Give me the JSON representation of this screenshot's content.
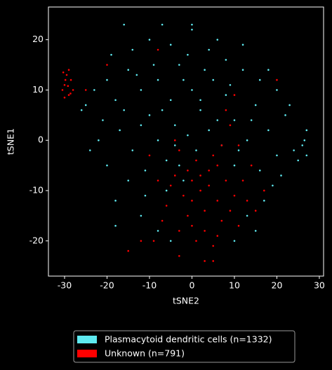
{
  "chart_data": {
    "type": "scatter",
    "x_label": "tSNE2",
    "y_label": "tSNE1",
    "xlim": [
      -33.8,
      31
    ],
    "ylim": [
      -27,
      26.5
    ],
    "xticks": [
      -30,
      -20,
      -10,
      0,
      10,
      20,
      30
    ],
    "yticks": [
      -20,
      -10,
      0,
      10,
      20
    ],
    "legend": "below",
    "series": [
      {
        "name": "Plasmacytoid dendritic cells (n=1332)",
        "color": "#5ee9f0",
        "x": [
          -20,
          -18,
          -15,
          -12,
          -10,
          -8,
          -5,
          -3,
          0,
          2,
          5,
          8,
          10,
          12,
          15,
          18,
          20,
          22,
          -22,
          -20,
          -17,
          -14,
          -11,
          -8,
          -6,
          -4,
          -1,
          1,
          4,
          7,
          10,
          13,
          16,
          19,
          -25,
          -23,
          -19,
          -14,
          -10,
          -5,
          0,
          4,
          8,
          12,
          16,
          20,
          24,
          26,
          27,
          26.5,
          25,
          27,
          -18,
          -15,
          -12,
          -8,
          -6,
          -3,
          -12,
          -7,
          -2,
          3,
          6,
          9,
          11,
          14,
          17,
          13,
          -16,
          -21,
          -9,
          -1,
          6,
          -4,
          2,
          -13,
          18,
          21,
          -26,
          -24,
          -11,
          -5,
          15,
          10,
          -16,
          -7,
          0,
          -18,
          23,
          -2
        ],
        "y": [
          12,
          8,
          14,
          10,
          5,
          12,
          8,
          15,
          10,
          6,
          12,
          9,
          4,
          14,
          7,
          2,
          -3,
          5,
          0,
          -5,
          2,
          -2,
          -6,
          0,
          -4,
          3,
          1,
          -2,
          2,
          -1,
          -5,
          0,
          -6,
          -9,
          7,
          10,
          17,
          18,
          20,
          19,
          22,
          18,
          16,
          19,
          12,
          10,
          -2,
          -1,
          -3,
          0,
          -4,
          2,
          -12,
          -8,
          -15,
          -18,
          -10,
          -5,
          3,
          6,
          12,
          14,
          4,
          11,
          -2,
          4,
          -12,
          -15,
          6,
          4,
          15,
          17,
          20,
          -1,
          8,
          13,
          14,
          -7,
          6,
          -2,
          -11,
          -20,
          -18,
          -20,
          23,
          23,
          23,
          -17,
          7,
          -8
        ]
      },
      {
        "name": "Unknown (n=791)",
        "color": "#ff0000",
        "x": [
          -30,
          -29.5,
          -29,
          -30.5,
          -28.5,
          -29,
          -30,
          -28,
          -29.8,
          -28.6,
          -30.3,
          -29.2,
          0,
          2,
          4,
          6,
          3,
          -2,
          -4,
          -6,
          8,
          10,
          1,
          5,
          -1,
          7,
          3,
          -3,
          9,
          12,
          -5,
          0,
          2,
          4,
          6,
          -1,
          1,
          5,
          11,
          13,
          -7,
          -8,
          7,
          9,
          -3,
          14,
          -9,
          0,
          6,
          3,
          -3,
          15,
          8,
          10,
          17,
          -10,
          -12,
          11,
          -4,
          5,
          -20,
          -8,
          20,
          -15,
          -25
        ],
        "y": [
          11,
          13,
          9,
          10,
          12,
          14,
          8.5,
          10,
          12,
          9.3,
          13.5,
          10.8,
          -8,
          -10,
          -6,
          -12,
          -14,
          -11,
          -7,
          -13,
          -8,
          -11,
          -4,
          -3,
          -15,
          -16,
          -18,
          -18,
          -14,
          -8,
          -9,
          -12,
          -7,
          -9,
          -5,
          -6,
          -20,
          -21,
          -17,
          -12,
          -16,
          -8,
          -1,
          3,
          -2,
          -5,
          -20,
          -17,
          -19,
          -24,
          -23,
          -14,
          6,
          9,
          -10,
          -3,
          -20,
          -1,
          0,
          -24,
          15,
          18,
          12,
          -22,
          10
        ]
      }
    ]
  }
}
